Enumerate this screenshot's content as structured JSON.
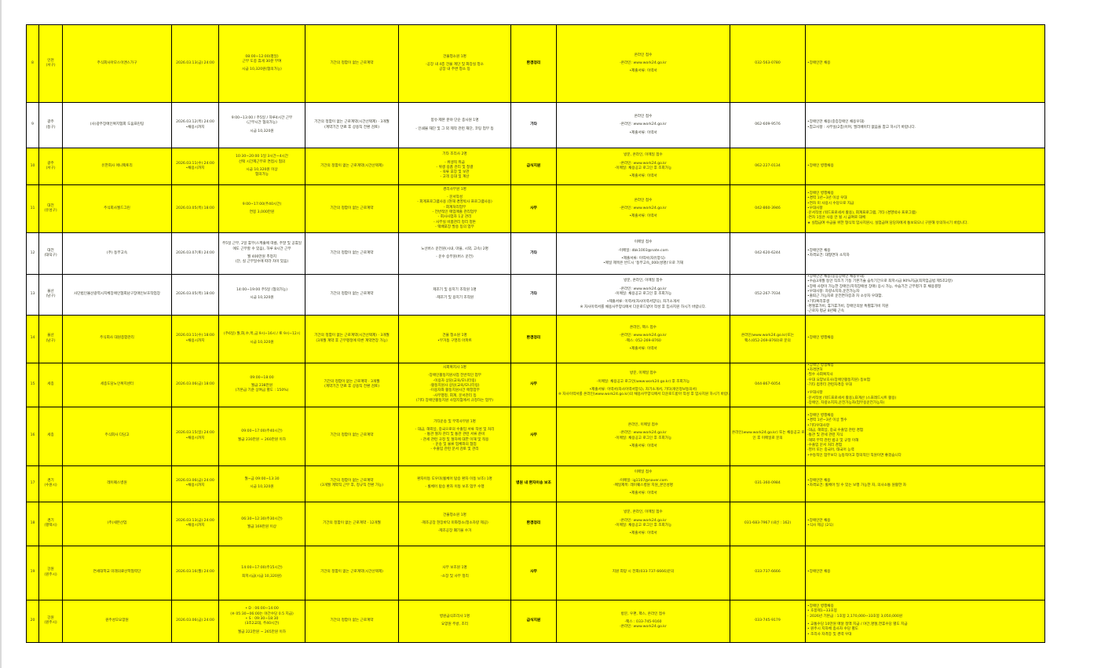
{
  "colors": {
    "highlight_row": "#ffff00",
    "plain_row": "#ffffff",
    "border": "#000000"
  },
  "rows": [
    {
      "no": "8",
      "region": [
        "인천",
        "(서구)"
      ],
      "company": [
        "주식회사아모스이앤스가구"
      ],
      "deadline": [
        "2026.03.13(금) 24:00"
      ],
      "hours": [
        "08:00~12:00(평일)",
        "근무 도중 휴게 30분 부여",
        "|",
        "시급 10,320원(협의가능)"
      ],
      "contract": [
        "기간의 정함이 없는 근로계약"
      ],
      "duties": [
        "건물청소원 1명",
        "|",
        "-공장 내 4층 건물 계단 및 화장실 청소",
        "공장 내 주변 청소 등"
      ],
      "category": "환경정리",
      "apply": [
        "온라인 접수",
        "|",
        "-온라인: www.work24.go.kr",
        "|",
        "•제출서류: 이력서"
      ],
      "phone": [
        "032-563-0780"
      ],
      "notes": [
        "•장애인만 채용"
      ],
      "highlight": true
    },
    {
      "no": "9",
      "region": [
        "광주",
        "(동구)"
      ],
      "company": [
        "(사)광주장애인복지협회 도움프린팅"
      ],
      "deadline": [
        "2026.03.12(목) 24:00",
        "•채용시까지"
      ],
      "hours": [
        "9:00~13:00 / 주5일 / 하루4시간 근무",
        "(근무시간 협의가능)",
        "|",
        "시급 10,320원"
      ],
      "contract": [
        "기간의 정함이 없는 근로계약(시간선택제) · 3개월",
        "(계약기간 만료 후 상용직 전환 검토)"
      ],
      "duties": [
        "봉유·제본 분야 단순 종사원 1명",
        "|",
        "- 인쇄물 재단 및 그 외 제작 관련 재단, 코팅 업무 등"
      ],
      "category": "기타",
      "apply": [
        "온라인 접수",
        "|",
        "-온라인: www.work24.go.kr",
        "|",
        "•제출서류: 이력서"
      ],
      "phone": [
        "062-609-9576"
      ],
      "notes": [
        "•장애인만 채용(중증장애인 채용우대)",
        "•참고사항 : 사무실(2층)이며, 엘리베이터 없음을 참고 하시기 바랍니다."
      ],
      "highlight": false
    },
    {
      "no": "10",
      "region": [
        "광주",
        "(서구)"
      ],
      "company": [
        "유한회사 애니팩토리"
      ],
      "deadline": [
        "2026.03.11(수) 24:00",
        "•채용시까지"
      ],
      "hours": [
        "10:30~20:00 1일 3시간~4시간",
        "선택 시간제근무로 면접시 협의",
        "|",
        "시급 10,320원 이상",
        "협의가능"
      ],
      "contract": [
        "기간의 정함이 없는 근로계약(시간선택제)"
      ],
      "duties": [
        "기타 조리사 2명",
        "|",
        "- 위생적 취급",
        "- 위생 용품 관리 및 청결",
        "- 육류 포장 및 보관",
        "- 고객 응대 및 계산"
      ],
      "category": "급식지원",
      "apply": [
        "방문, 온라인, 이메일 접수",
        "|",
        "-온라인: www.work24.go.kr",
        "-이메일: 채용공고 로그인 후 조회가능",
        "|",
        "•제출서류: 이력서"
      ],
      "phone": [
        "062-227-0134"
      ],
      "notes": [
        "•장애인 병행채용"
      ],
      "highlight": true
    },
    {
      "no": "11",
      "region": [
        "대전",
        "(유성구)"
      ],
      "company": [
        "주식회사월드그린"
      ],
      "deadline": [
        "2026.03.05(목) 18:00"
      ],
      "hours": [
        "9:00~17:00(주40시간)",
        "|",
        "연봉 3,000만원"
      ],
      "contract": [
        "기간의 정함이 없는 근로계약"
      ],
      "duties": [
        "경리사무원 1명",
        "|",
        "- 문서작성",
        "- 회계프로그램사용 (현재 경영박사 프로그램사용)",
        "- 회계처리업무",
        "- 전반적인 매입매출 관리업무",
        "- 회사사업자 1곳 관리",
        "- 사무실 비품관리 정리 정돈",
        "- 택배포장 발송 등의 업무"
      ],
      "category": "사무",
      "apply": [
        "온라인 접수",
        "|",
        "-온라인: www.work24.go.kr",
        "|",
        "•제출서류: 이력서"
      ],
      "phone": [
        "042-860-3946"
      ],
      "notes": [
        "•장애인 병행채용",
        "•경력 1년~3년 이상 우대",
        "•연차 미 사용시 수당으로 지급",
        "•우대사항",
        "-문서작성 (워드프로세서 활용), 회계프로그램, 기타 (경영박사 프로그램)",
        "-연차 1일은 사용 안 될 시 급여로 대체",
        "★ 실업급여 수급을 위한 형식적 입사지원시, 실업급여 담당자에게 통보되오니 구분해 유의하시기 바랍니다."
      ],
      "highlight": true
    },
    {
      "no": "12",
      "region": [
        "대전",
        "(대덕구)"
      ],
      "company": [
        "(주) 동부고속"
      ],
      "deadline": [
        "2026.03.07(토) 24:00"
      ],
      "hours": [
        "주5일 근무, 2일 휴무(스케줄에 따름, 주말 및 공휴일",
        "에도 근무할 수 있음), 하루 8시간 근무",
        "|",
        "월 400만원 추정치",
        "(단, 실 근무일수에 따라 차이 있음)"
      ],
      "contract": [
        "기간의 정함이 없는 근로계약"
      ],
      "duties": [
        "노선버스 운전원(시내, 마을, 시외, 고속) 2명",
        "|",
        "- 운수 승무원(버스 운전)"
      ],
      "category": "기타",
      "apply": [
        "이메일 접수",
        "|",
        "-이메일: dbk1003@nate.com",
        "|",
        "•제출서류: 이력서(자유양식)",
        "•메일 제목은 반드시 '동부고속_000(성명)'으로 기재"
      ],
      "phone": [
        "042-620-6244"
      ],
      "notes": [
        "•장애인만 채용",
        "•자격요건: 대형면허 소지자"
      ],
      "highlight": false
    },
    {
      "no": "13",
      "region": [
        "울산",
        "(남구)"
      ],
      "company": [
        "사단법인울산광역시지체장애인협회남구장애인보호작업장"
      ],
      "deadline": [
        "2026.03.05(목) 18:00"
      ],
      "hours": [
        "14:00~19:00 주5일 (협의가능)",
        "|",
        "시급 10,320원"
      ],
      "contract": [
        "기간의 정함이 없는 근로계약"
      ],
      "duties": [
        "제조기 및 용지기 조작원 1명",
        "|",
        "-제조기 및 용지기 조작원"
      ],
      "category": "기타",
      "apply": [
        "방문, 온라인, 이메일 접수",
        "|",
        "-온라인: www.work24.go.kr",
        "-이메일: 채용공고 로그인 후 조회가능",
        "|",
        "•제출서류: 이력서(자사이력서양식), 자기소개서",
        "※ 자사이력서를 채용사무양식에서 다운로드받아 작성 후 입사지원 하시기 바랍니다."
      ],
      "phone": [
        "052-267-7034"
      ],
      "notes": [
        "•장애인만 채용(중증장애인 채용우대)",
        "•수습3개월 동안 직조기 기동 기본기술 습득기간으로 최저시급 90%지급(최저임금법 제5조2항)",
        "•장애 사항이 가능한 장애인(지적장애성 장애) 응시 가능, 수습기간 근무평가 후 채용결정",
        "•우대사항: 차량소지자,운전가능자",
        "•출퇴근 가능자로 운전면허증과 차 소유자 우대함.",
        "•기타복리후생",
        "-명절휴가비, 휴가휴가비, 장애인의날 특별휴가비 지원",
        "-근로자 평균 8년째 근속"
      ],
      "highlight": false
    },
    {
      "no": "14",
      "region": [
        "울산",
        "(남구)"
      ],
      "company": [
        "주식회사 대원종합관리"
      ],
      "deadline": [
        "2026.03.11(수) 18:00",
        "•채용시까지"
      ],
      "hours": [
        "(주6일) 월,화,수,목,금 9시~16시 / 토 9시~12시",
        "|",
        "시급 10,320원"
      ],
      "contract": [
        "기간의 정함이 없는 근로계약(시간선택제) · 3개월",
        "(3개월 계약 후 근무평정에 따른 계약연장 가능)"
      ],
      "duties": [
        "건물 청소원 1명",
        "•무거동 구영리 아파트"
      ],
      "category": "환경정리",
      "apply": [
        "온라인, 팩스 접수",
        "|",
        "-온라인: www.work24.go.kr",
        "-팩스: 052-269-8760",
        "|",
        "•제출서류: 이력서"
      ],
      "phone": [
        "온라인(www.work24.go.kr)또는",
        "팩스(052-269-8760)로 문의"
      ],
      "notes": [
        "•장애인 병행채용"
      ],
      "highlight": true
    },
    {
      "no": "15",
      "region": [
        "세종"
      ],
      "company": [
        "세종도담노인복지센터"
      ],
      "deadline": [
        "2026.03.06(금) 18:00"
      ],
      "hours": [
        "09:00~18:00",
        "|",
        "월급 238만원",
        "(기본급 기준 상여금 별도 : 150%)"
      ],
      "contract": [
        "기간의 정함이 없는 근로계약 · 3개월",
        "(계약기간 만료 후 상용직 전환 검토)"
      ],
      "duties": [
        "사회복지사 1명",
        "|",
        "-장애인활동지원사업 전반적인 업무",
        "-이용자 상담(교육/모니터링)",
        "-활동지원사 상담(교육/모니터링)",
        "-이용자와 활동지원사간 매칭업무",
        "-사무행정, 회계, 문서관리 등",
        "(기타 장애인활동지원 사업지침에서 규정하는 업무)"
      ],
      "category": "사무",
      "apply": [
        "방문, 이메일 접수",
        "|",
        "-이메일: 채용공고 로그인(www.work24.go.kr) 후 조회가능",
        "|",
        "•제출서류: 이력서(자사이력서양식), 자기소개서, 기타(개인정보동의서)",
        "※ 자사이력서를 온라인(www.work24.go.kr)의 채용사무양식에서 다운로드받아 작성 후 입사지원 하시기 바랍니다."
      ],
      "phone": [
        "044-867-6054"
      ],
      "notes": [
        "•장애인 병행채용",
        "•자격면허",
        "-필수 사회복지사",
        "-우대 요양보호사(장애인활동지원) 등보험",
        "-기타 컴퓨터 관련자격증 우대",
        "|",
        "•우대사항",
        "-문서작성 (워드프로세서 활용),표계산 (스프레드시트 활용)",
        "-장애인, 차량소지자,운전가능자(업무용운전가능자)"
      ],
      "highlight": true
    },
    {
      "no": "16",
      "region": [
        "세종"
      ],
      "company": [
        "주식회사 다담고"
      ],
      "deadline": [
        "2026.03.15(일) 24:00",
        "•채용시까지"
      ],
      "hours": [
        "09:00~17:00(주40시간)",
        "|",
        "월급 230만원 ~ 260만원 이하"
      ],
      "contract": [
        "기간의 정함이 없는 근로계약"
      ],
      "duties": [
        "기타운송 및 무역사무원 1명",
        "|",
        "- 대금, 해외납, 중국으로의 수출입 서류 작성 및 처리",
        "- 통관 절차 관리 및 통관 관련 서류 준비",
        "- 관세 관련 규정 및 절차에 대한 이해 및 적용",
        "- 운송 및 물류 업체와의 협업",
        "- 수출입 관련 문서 검토 및 관리"
      ],
      "category": "사무",
      "apply": [
        "온라인, 이메일 접수",
        "|",
        "-온라인: www.work24.go.kr",
        "-이메일: 채용공고 로그인 후 조회가능",
        "|",
        "•제출서류: 이력서"
      ],
      "phone": [
        "온라인(www.work24.go.kr) 또는 채용공고 로그",
        "인 후 이메일로 문의"
      ],
      "notes": [
        "•장애인 병행채용",
        "•경력 1년~3년 이상 필수",
        "•기타우대사항",
        "-대금, 해외납, 중국 수출입 관련 경험",
        "-통관 및 관세 관련 지식",
        "-해외 무역 관련 법규 및 규정 이해",
        "-수출입 문서 처리 경험",
        "-영어 또는 중국어, 태국어 능력",
        "•수동적인 업무보다 능동적이고 창의적인 직원이면 좋겠습니다"
      ],
      "highlight": true
    },
    {
      "no": "17",
      "region": [
        "경기",
        "(수원시)"
      ],
      "company": [
        "레이퀘스병원"
      ],
      "deadline": [
        "2026.03.06(금) 24:00",
        "•채용시까지"
      ],
      "hours": [
        "월~금 09:00~13:30",
        "|",
        "시급 10,320원"
      ],
      "contract": [
        "기간의 정함이 없는 근로계약",
        "(3개월 계약직 근무 후, 정규직 전환 가능)"
      ],
      "duties": [
        "환자이동 도우미(휠체어 탑승 환자 이동 보조) 1명",
        "|",
        "- 휠체어 탑승 환자 이동 보조 업무 수행"
      ],
      "category": "병원 내 환자이송 보조",
      "apply": [
        "이메일 접수",
        "|",
        "-이메일: ig1107@naver.com",
        "-메일제목: 레이퀘스병원 지원_본인성명",
        "|",
        "•제출서류: 이력서"
      ],
      "phone": [
        "031-360-0984"
      ],
      "notes": [
        "•장애인만 채용",
        "•자격요건: 휠체어 밀 수 있는 보행 가능한 자, 의사소통 원활한 자"
      ],
      "highlight": true
    },
    {
      "no": "18",
      "region": [
        "경기",
        "(평택시)"
      ],
      "company": [
        "(주)세븐산업"
      ],
      "deadline": [
        "2026.03.13(금) 24:00",
        "•채용시까지"
      ],
      "hours": [
        "06:30~12:30(주30시간)",
        "|",
        "월급 169만원 이상"
      ],
      "contract": [
        "기간의 정함이 없는 근로계약 · 12개월"
      ],
      "duties": [
        "건물청소원 1명",
        "|",
        "-제조공장 현장바닥 미화청소(청소차량 제공)",
        "|",
        "-제조공장 폐기물 수거"
      ],
      "category": "환경정리",
      "apply": [
        "방문, 온라인, 이메일 접수",
        "|",
        "-온라인: www.work24.go.kr",
        "-이메일: 채용공고 로그인 후 조회가능",
        "|",
        "•제출서류: 이력서"
      ],
      "phone": [
        "031-683-7967 (내선 : 162)"
      ],
      "notes": [
        "•장애인만 채용",
        "•식사 제공 (2식)"
      ],
      "highlight": true
    },
    {
      "no": "19",
      "region": [
        "강원",
        "(원주시)"
      ],
      "company": [
        "연세대학교 미래의료산학협력단"
      ],
      "deadline": [
        "2026.03.16(월) 24:00"
      ],
      "hours": [
        "14:00~17:00(주15시간)",
        "|",
        "최저시급(시급 10,320원)"
      ],
      "contract": [
        "기간의 정함이 없는 근로계약(시간선택제)"
      ],
      "duties": [
        "사무 보조원 1명",
        "|",
        "-소장 및 사무 정리"
      ],
      "category": "사무",
      "apply": [
        "지원 희망 시 전화(033-737-6666)문의"
      ],
      "phone": [
        "033-737-6666"
      ],
      "notes": [
        "•장애인만 채용"
      ],
      "highlight": true
    },
    {
      "no": "20",
      "region": [
        "강원",
        "(원주시)"
      ],
      "company": [
        "원주성모요양원"
      ],
      "deadline": [
        "2026.03.06(금) 24:00"
      ],
      "hours": [
        "• D : 06:00~14:00",
        "(※ 05:30~06:00는 야간수당 0.5 지급)",
        "• S : 09:30~18:30",
        "(3조2교대, 주40시간)",
        "|",
        "월급 222만원 ~ 265만원 이하"
      ],
      "contract": [
        "기간의 정함이 없는 근로계약"
      ],
      "duties": [
        "병원급식조리사 1명",
        "|",
        "요양원 주방, 조리"
      ],
      "category": "급식지원",
      "apply": [
        "방문, 우편, 팩스, 온라인 접수",
        "|",
        "-팩스 : 033-745-9160",
        "-온라인: www.work24.go.kr"
      ],
      "phone": [
        "033-745-9179"
      ],
      "notes": [
        "•장애인 병행채용",
        "• 호봉제1~33호봉",
        "- 2026년 기본급 : 1호봉 2,170,000~33호봉 3,050,000원",
        "|",
        "• 교통수당 10만원 매달 정액 지급 / 야간,명절,연휴수당 별도 지급",
        "• 원주시 지자체 종사자 수당 별도",
        "• 조리사 자격증 및 경력 우대"
      ],
      "highlight": true
    }
  ]
}
